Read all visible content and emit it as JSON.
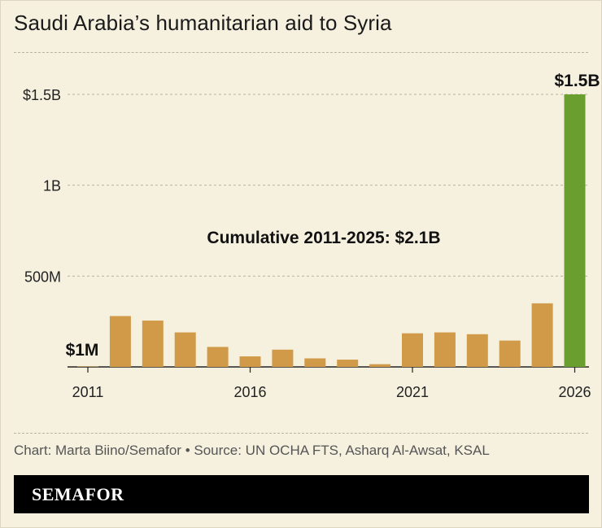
{
  "title": "Saudi Arabia’s humanitarian aid to Syria",
  "credit": "Chart: Marta Biino/Semafor • Source: UN OCHA FTS, Asharq Al-Awsat, KSAL",
  "brand": "SEMAFOR",
  "colors": {
    "bar": "#d09a48",
    "highlight": "#6a9e2e",
    "background": "#f6f1df",
    "grid": "#b8b39f"
  },
  "chart_data": {
    "type": "bar",
    "title": "Saudi Arabia’s humanitarian aid to Syria",
    "xlabel": "",
    "ylabel": "",
    "ylim": [
      0,
      1500000000
    ],
    "grid": true,
    "y_ticks": [
      {
        "value": 500000000,
        "label": "500M"
      },
      {
        "value": 1000000000,
        "label": "1B"
      },
      {
        "value": 1500000000,
        "label": "$1.5B"
      }
    ],
    "x_ticks": [
      {
        "value": 2011,
        "label": "2011"
      },
      {
        "value": 2016,
        "label": "2016"
      },
      {
        "value": 2021,
        "label": "2021"
      },
      {
        "value": 2026,
        "label": "2026"
      }
    ],
    "categories": [
      2011,
      2012,
      2013,
      2014,
      2015,
      2016,
      2017,
      2018,
      2019,
      2020,
      2021,
      2022,
      2023,
      2024,
      2025,
      2026
    ],
    "values": [
      1000000,
      280000000,
      255000000,
      190000000,
      110000000,
      58000000,
      95000000,
      47000000,
      40000000,
      15000000,
      185000000,
      190000000,
      180000000,
      145000000,
      350000000,
      1500000000
    ],
    "highlight_index": 15,
    "data_labels": [
      {
        "index": 0,
        "label": "$1M"
      },
      {
        "index": 15,
        "label": "$1.5B"
      }
    ],
    "annotation": "Cumulative 2011-2025: $2.1B"
  }
}
